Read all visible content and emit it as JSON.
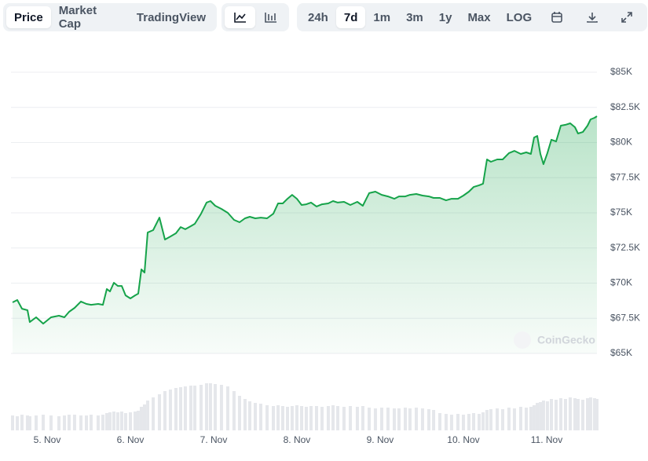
{
  "toolbar": {
    "tabs": [
      "Price",
      "Market Cap",
      "TradingView"
    ],
    "ranges": [
      "24h",
      "7d",
      "1m",
      "3m",
      "1y",
      "Max",
      "LOG"
    ]
  },
  "watermark": "CoinGecko",
  "chart_data": {
    "type": "area",
    "color": "#16a34a",
    "grid": true,
    "x": [
      4.585,
      4.642,
      4.698,
      4.764,
      4.792,
      4.868,
      4.953,
      5.047,
      5.142,
      5.208,
      5.264,
      5.33,
      5.406,
      5.472,
      5.528,
      5.613,
      5.67,
      5.717,
      5.755,
      5.802,
      5.849,
      5.896,
      5.943,
      6.0,
      6.057,
      6.094,
      6.132,
      6.17,
      6.208,
      6.274,
      6.349,
      6.415,
      6.481,
      6.547,
      6.604,
      6.66,
      6.726,
      6.774,
      6.849,
      6.915,
      6.962,
      7.019,
      7.094,
      7.17,
      7.245,
      7.311,
      7.377,
      7.434,
      7.5,
      7.566,
      7.642,
      7.717,
      7.774,
      7.83,
      7.887,
      7.943,
      8.0,
      8.057,
      8.113,
      8.17,
      8.236,
      8.302,
      8.377,
      8.434,
      8.491,
      8.566,
      8.642,
      8.726,
      8.792,
      8.868,
      8.943,
      9.019,
      9.094,
      9.17,
      9.226,
      9.302,
      9.358,
      9.434,
      9.509,
      9.585,
      9.642,
      9.717,
      9.792,
      9.858,
      9.934,
      10.0,
      10.066,
      10.123,
      10.189,
      10.236,
      10.283,
      10.33,
      10.406,
      10.472,
      10.547,
      10.613,
      10.689,
      10.755,
      10.811,
      10.849,
      10.887,
      10.925,
      10.962,
      11.009,
      11.057,
      11.113,
      11.17,
      11.226,
      11.283,
      11.34,
      11.377,
      11.434,
      11.491,
      11.528,
      11.575,
      11.604
    ],
    "values": [
      68630,
      68800,
      68180,
      68070,
      67230,
      67570,
      67120,
      67570,
      67680,
      67570,
      67960,
      68240,
      68690,
      68520,
      68460,
      68520,
      68460,
      69580,
      69410,
      70030,
      69800,
      69800,
      69130,
      68910,
      69130,
      69250,
      70980,
      70750,
      73600,
      73770,
      74660,
      73100,
      73320,
      73550,
      73990,
      73830,
      74050,
      74220,
      74940,
      75730,
      75840,
      75500,
      75280,
      75000,
      74500,
      74330,
      74610,
      74720,
      74610,
      74660,
      74610,
      74940,
      75670,
      75670,
      76000,
      76280,
      76000,
      75560,
      75610,
      75730,
      75450,
      75610,
      75670,
      75840,
      75730,
      75780,
      75560,
      75780,
      75500,
      76400,
      76510,
      76280,
      76170,
      76000,
      76170,
      76170,
      76280,
      76340,
      76230,
      76170,
      76060,
      76060,
      75890,
      76000,
      76000,
      76230,
      76510,
      76840,
      76960,
      77070,
      78800,
      78630,
      78800,
      78800,
      79250,
      79410,
      79190,
      79300,
      79190,
      80360,
      80470,
      79190,
      78460,
      79250,
      80200,
      80080,
      81200,
      81260,
      81370,
      81090,
      80640,
      80750,
      81200,
      81650,
      81760,
      81870
    ],
    "volume": {
      "color": "#e5e7eb",
      "values": [
        19,
        18,
        20,
        19,
        18,
        19,
        20,
        19,
        18,
        19,
        20,
        20,
        19,
        19,
        20,
        19,
        20,
        22,
        23,
        24,
        23,
        24,
        22,
        23,
        24,
        25,
        30,
        33,
        38,
        42,
        46,
        50,
        52,
        54,
        55,
        56,
        57,
        57,
        58,
        60,
        60,
        59,
        58,
        56,
        50,
        44,
        40,
        37,
        35,
        34,
        32,
        31,
        32,
        31,
        30,
        31,
        32,
        31,
        30,
        31,
        31,
        30,
        31,
        32,
        31,
        30,
        31,
        30,
        31,
        29,
        28,
        29,
        29,
        28,
        28,
        29,
        28,
        29,
        28,
        27,
        26,
        22,
        21,
        20,
        21,
        20,
        21,
        22,
        21,
        23,
        26,
        27,
        28,
        27,
        29,
        28,
        30,
        29,
        30,
        32,
        35,
        36,
        38,
        37,
        40,
        39,
        41,
        40,
        42,
        41,
        40,
        39,
        41,
        42,
        41,
        40
      ]
    },
    "xlim": [
      4.585,
      11.604
    ],
    "xticks": [
      {
        "value": 5,
        "label": "5. Nov"
      },
      {
        "value": 6,
        "label": "6. Nov"
      },
      {
        "value": 7,
        "label": "7. Nov"
      },
      {
        "value": 8,
        "label": "8. Nov"
      },
      {
        "value": 9,
        "label": "9. Nov"
      },
      {
        "value": 10,
        "label": "10. Nov"
      },
      {
        "value": 11,
        "label": "11. Nov"
      }
    ],
    "ylim": [
      65000,
      85000
    ],
    "yticks": [
      {
        "value": 65000,
        "label": "$65K"
      },
      {
        "value": 67500,
        "label": "$67.5K"
      },
      {
        "value": 70000,
        "label": "$70K"
      },
      {
        "value": 72500,
        "label": "$72.5K"
      },
      {
        "value": 75000,
        "label": "$75K"
      },
      {
        "value": 77500,
        "label": "$77.5K"
      },
      {
        "value": 80000,
        "label": "$80K"
      },
      {
        "value": 82500,
        "label": "$82.5K"
      },
      {
        "value": 85000,
        "label": "$85K"
      }
    ]
  }
}
